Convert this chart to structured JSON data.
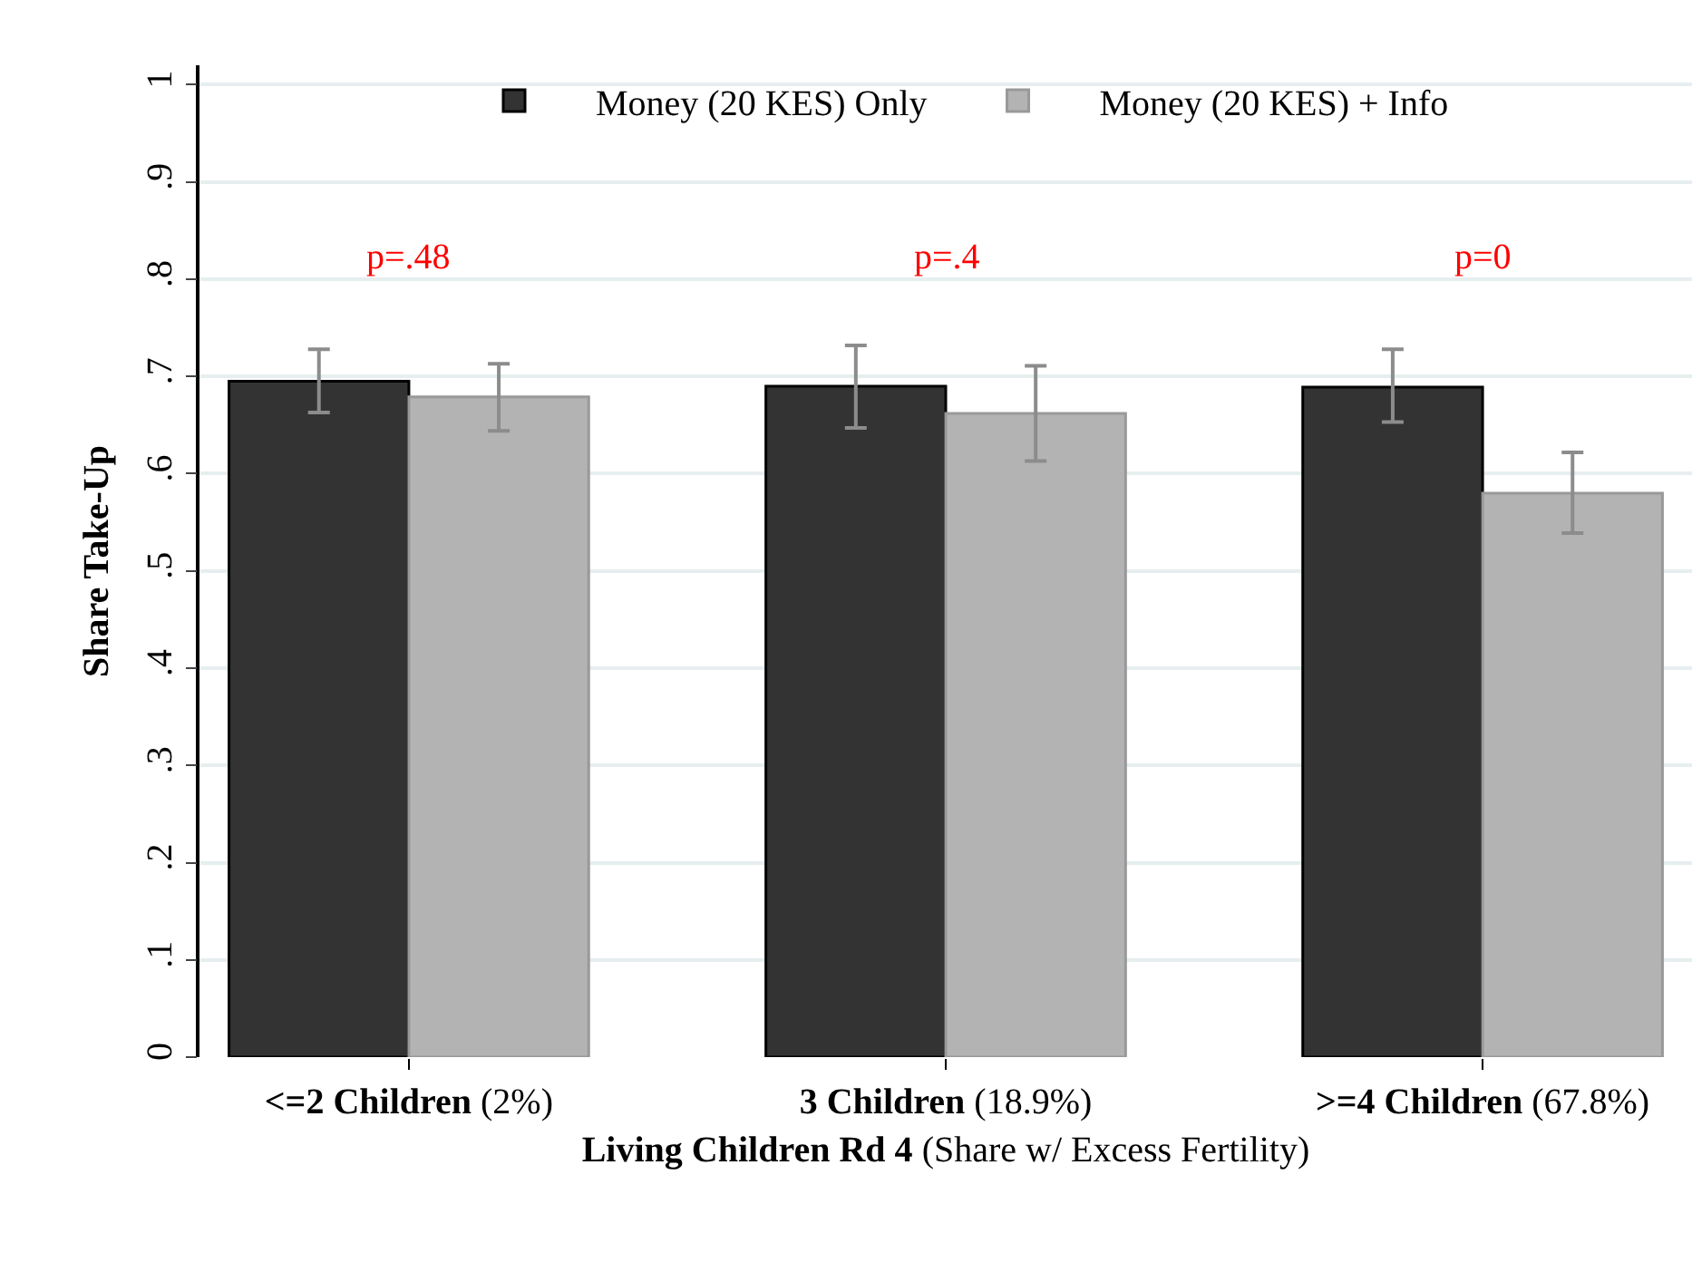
{
  "chart_data": {
    "type": "bar",
    "categories": [
      "<=2 Children (2%)",
      "3 Children (18.9%)",
      ">=4 Children (67.8%)"
    ],
    "series": [
      {
        "name": "Money (20 KES) Only",
        "color": "#333333",
        "values": [
          0.695,
          0.69,
          0.689
        ],
        "errors": [
          [
            0.663,
            0.728
          ],
          [
            0.647,
            0.732
          ],
          [
            0.653,
            0.728
          ]
        ]
      },
      {
        "name": "Money (20 KES) + Info",
        "color": "#b3b3b3",
        "values": [
          0.679,
          0.662,
          0.58
        ],
        "errors": [
          [
            0.644,
            0.713
          ],
          [
            0.613,
            0.711
          ],
          [
            0.539,
            0.622
          ]
        ]
      }
    ],
    "xlabel": "Living Children Rd 4 (Share w/ Excess Fertility)",
    "ylabel": "Share Take-Up",
    "ylim": [
      0,
      1.02
    ],
    "yticks": [
      0,
      {
        "value": 0.1,
        "label": ".1"
      },
      {
        "value": 0.2,
        "label": ".2"
      },
      {
        "value": 0.3,
        "label": ".3"
      },
      {
        "value": 0.4,
        "label": ".4"
      },
      {
        "value": 0.5,
        "label": ".5"
      },
      {
        "value": 0.6,
        "label": ".6"
      },
      {
        "value": 0.7,
        "label": ".7"
      },
      {
        "value": 0.8,
        "label": ".8"
      },
      {
        "value": 0.9,
        "label": ".9"
      },
      1
    ],
    "annotations": [
      "p=.48",
      "p=.4",
      "p=0"
    ],
    "grid": "y",
    "legend": "top"
  }
}
